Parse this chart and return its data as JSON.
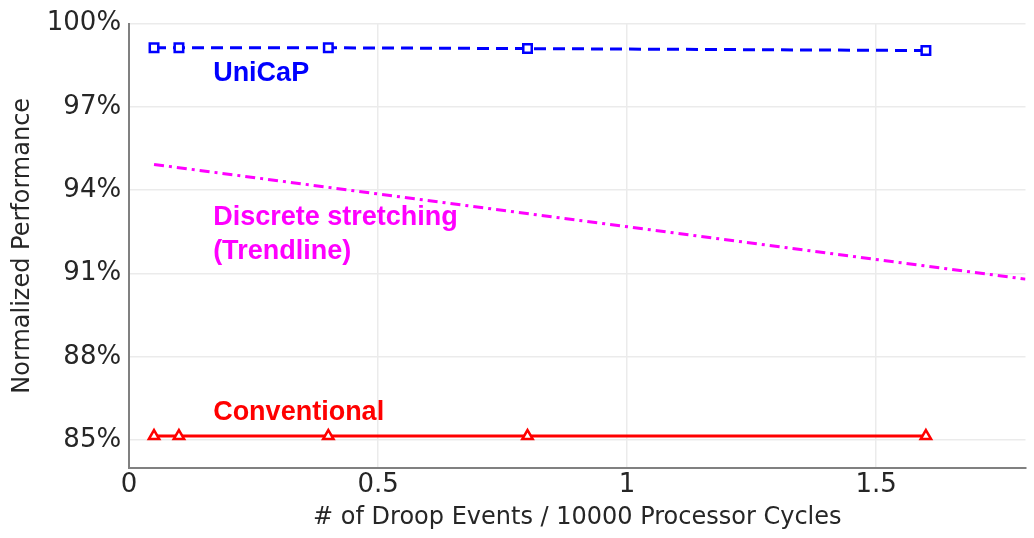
{
  "chart_data": {
    "type": "line",
    "xlabel": "# of Droop Events / 10000 Processor Cycles",
    "ylabel": "Normalized Performance",
    "xlim": [
      0,
      1.8
    ],
    "xticks": [
      0,
      0.5,
      1,
      1.5
    ],
    "ylim": [
      84,
      100
    ],
    "yticks": [
      {
        "value": 85,
        "label": "85%"
      },
      {
        "value": 88,
        "label": "88%"
      },
      {
        "value": 91,
        "label": "91%"
      },
      {
        "value": 94,
        "label": "94%"
      },
      {
        "value": 97,
        "label": "97%"
      },
      {
        "value": 100,
        "label": "100%"
      }
    ],
    "grid": true,
    "legend": false,
    "series": [
      {
        "name": "UniCaP",
        "color": "#0000ff",
        "x": [
          0.05,
          0.1,
          0.4,
          0.8,
          1.6
        ],
        "values": [
          99.13,
          99.13,
          99.13,
          99.1,
          99.03
        ],
        "marker": "square",
        "line_style": "dashed"
      },
      {
        "name": "Discrete stretching\n(Trendline)",
        "color": "#ff00ff",
        "x": [
          0.05,
          1.8
        ],
        "values": [
          94.93,
          90.8
        ],
        "marker": "none",
        "line_style": "dashed"
      },
      {
        "name": "Conventional",
        "color": "#ff0000",
        "x": [
          0.05,
          0.1,
          0.4,
          0.8,
          1.6
        ],
        "values": [
          85.15,
          85.15,
          85.15,
          85.15,
          85.15
        ],
        "marker": "triangle",
        "line_style": "solid"
      }
    ]
  }
}
